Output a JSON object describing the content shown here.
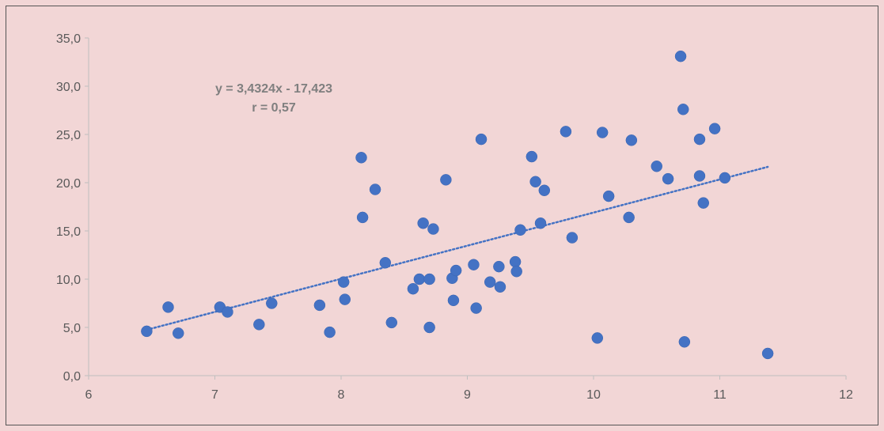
{
  "chart_data": {
    "type": "scatter",
    "title": "",
    "xlabel": "",
    "ylabel": "",
    "xlim": [
      6,
      12
    ],
    "ylim": [
      0,
      35
    ],
    "x_ticks": [
      "6",
      "7",
      "8",
      "9",
      "10",
      "11",
      "12"
    ],
    "y_ticks": [
      "0,0",
      "5,0",
      "10,0",
      "15,0",
      "20,0",
      "25,0",
      "30,0",
      "35,0"
    ],
    "grid": false,
    "legend": "none",
    "series": [
      {
        "marker_color": "#4472c4",
        "points": [
          [
            6.46,
            4.6
          ],
          [
            6.63,
            7.1
          ],
          [
            6.71,
            4.4
          ],
          [
            7.04,
            7.1
          ],
          [
            7.1,
            6.6
          ],
          [
            7.35,
            5.3
          ],
          [
            7.45,
            7.5
          ],
          [
            7.83,
            7.3
          ],
          [
            7.91,
            4.5
          ],
          [
            8.02,
            9.7
          ],
          [
            8.03,
            7.9
          ],
          [
            8.16,
            22.6
          ],
          [
            8.17,
            16.4
          ],
          [
            8.27,
            19.3
          ],
          [
            8.35,
            11.7
          ],
          [
            8.4,
            5.5
          ],
          [
            8.57,
            9.0
          ],
          [
            8.62,
            10.0
          ],
          [
            8.65,
            15.8
          ],
          [
            8.7,
            10.0
          ],
          [
            8.7,
            5.0
          ],
          [
            8.73,
            15.2
          ],
          [
            8.83,
            20.3
          ],
          [
            8.88,
            10.1
          ],
          [
            8.89,
            7.8
          ],
          [
            8.91,
            10.9
          ],
          [
            9.05,
            11.5
          ],
          [
            9.07,
            7.0
          ],
          [
            9.11,
            24.5
          ],
          [
            9.18,
            9.7
          ],
          [
            9.25,
            11.3
          ],
          [
            9.26,
            9.2
          ],
          [
            9.38,
            11.8
          ],
          [
            9.39,
            10.8
          ],
          [
            9.42,
            15.1
          ],
          [
            9.51,
            22.7
          ],
          [
            9.54,
            20.1
          ],
          [
            9.58,
            15.8
          ],
          [
            9.61,
            19.2
          ],
          [
            9.78,
            25.3
          ],
          [
            9.83,
            14.3
          ],
          [
            10.03,
            3.9
          ],
          [
            10.07,
            25.2
          ],
          [
            10.12,
            18.6
          ],
          [
            10.28,
            16.4
          ],
          [
            10.3,
            24.4
          ],
          [
            10.5,
            21.7
          ],
          [
            10.59,
            20.4
          ],
          [
            10.69,
            33.1
          ],
          [
            10.71,
            27.6
          ],
          [
            10.72,
            3.5
          ],
          [
            10.84,
            24.5
          ],
          [
            10.84,
            20.7
          ],
          [
            10.87,
            17.9
          ],
          [
            10.96,
            25.6
          ],
          [
            11.04,
            20.5
          ],
          [
            11.38,
            2.3
          ]
        ]
      }
    ],
    "trendline": {
      "style": "dotted",
      "color": "#4472c4",
      "slope": 3.4324,
      "intercept": -17.423,
      "x_range": [
        6.46,
        11.38
      ]
    },
    "annotation": {
      "equation": "y = 3,4324x - 17,423",
      "r_value": "r = 0,57"
    }
  }
}
